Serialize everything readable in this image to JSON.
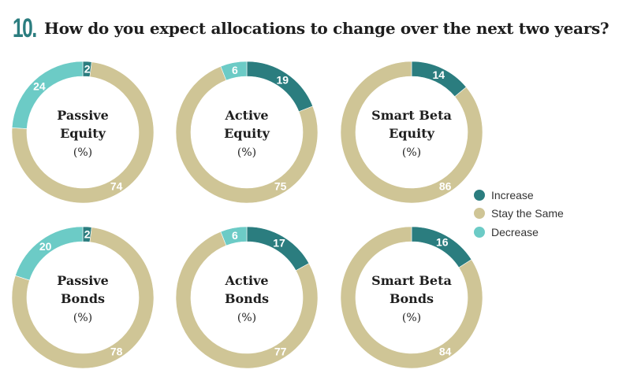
{
  "header": {
    "number": "10.",
    "title": "How do you expect allocations to change over the next two years?"
  },
  "colors": {
    "increase": "#2b7d7f",
    "stay": "#cfc596",
    "decrease": "#6ccbc6"
  },
  "legend": [
    {
      "label": "Increase",
      "color": "#2b7d7f"
    },
    {
      "label": "Stay the Same",
      "color": "#cfc596"
    },
    {
      "label": "Decrease",
      "color": "#6ccbc6"
    }
  ],
  "chart_data": [
    {
      "type": "pie",
      "title_lines": [
        "Passive",
        "Equity"
      ],
      "unit": "(%)",
      "categories": [
        "Increase",
        "Stay the Same",
        "Decrease"
      ],
      "values": [
        2,
        74,
        24
      ]
    },
    {
      "type": "pie",
      "title_lines": [
        "Active",
        "Equity"
      ],
      "unit": "(%)",
      "categories": [
        "Increase",
        "Stay the Same",
        "Decrease"
      ],
      "values": [
        19,
        75,
        6
      ]
    },
    {
      "type": "pie",
      "title_lines": [
        "Smart Beta",
        "Equity"
      ],
      "unit": "(%)",
      "categories": [
        "Increase",
        "Stay the Same"
      ],
      "values": [
        14,
        86
      ]
    },
    {
      "type": "pie",
      "title_lines": [
        "Passive",
        "Bonds"
      ],
      "unit": "(%)",
      "categories": [
        "Increase",
        "Stay the Same",
        "Decrease"
      ],
      "values": [
        2,
        78,
        20
      ]
    },
    {
      "type": "pie",
      "title_lines": [
        "Active",
        "Bonds"
      ],
      "unit": "(%)",
      "categories": [
        "Increase",
        "Stay the Same",
        "Decrease"
      ],
      "values": [
        17,
        77,
        6
      ]
    },
    {
      "type": "pie",
      "title_lines": [
        "Smart Beta",
        "Bonds"
      ],
      "unit": "(%)",
      "categories": [
        "Increase",
        "Stay the Same"
      ],
      "values": [
        16,
        84
      ]
    }
  ]
}
